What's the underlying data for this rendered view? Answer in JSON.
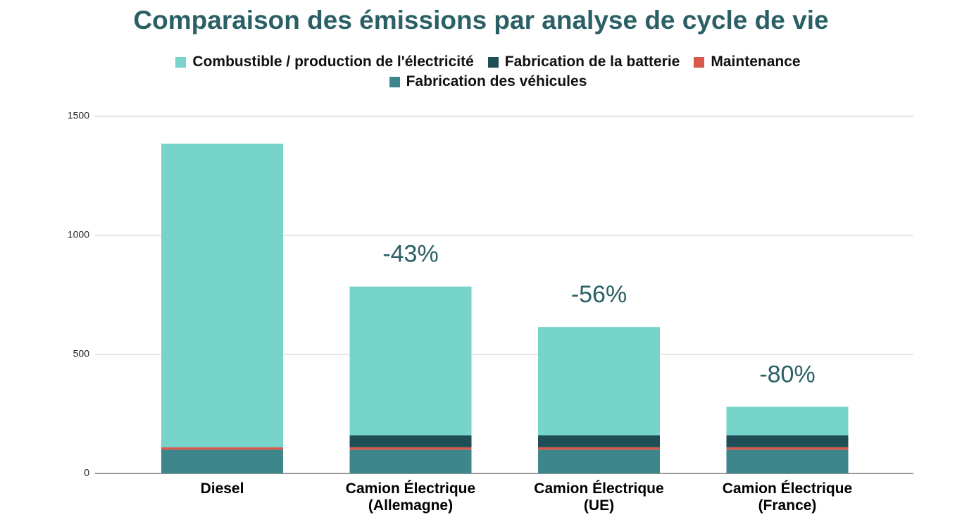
{
  "chart_data": {
    "type": "stacked_bar",
    "title": "Comparaison des émissions par analyse de cycle de vie",
    "categories": [
      "Diesel",
      "Camion Électrique\n(Allemagne)",
      "Camion Électrique\n(UE)",
      "Camion Électrique\n(France)"
    ],
    "series": [
      {
        "name": "Combustible / production de l'électricité",
        "color": "#76d4cb",
        "values": [
          1275,
          625,
          455,
          120
        ]
      },
      {
        "name": "Fabrication de la batterie",
        "color": "#1f4e57",
        "values": [
          0,
          50,
          50,
          50
        ]
      },
      {
        "name": "Maintenance",
        "color": "#d9584a",
        "values": [
          10,
          10,
          10,
          10
        ]
      },
      {
        "name": "Fabrication des véhicules",
        "color": "#3d868c",
        "values": [
          100,
          100,
          100,
          100
        ]
      }
    ],
    "annotations": [
      null,
      "-43%",
      "-56%",
      "-80%"
    ],
    "ylim": [
      0,
      1500
    ],
    "yticks": [
      0,
      500,
      1000,
      1500
    ],
    "grid": true,
    "legend": "top"
  }
}
